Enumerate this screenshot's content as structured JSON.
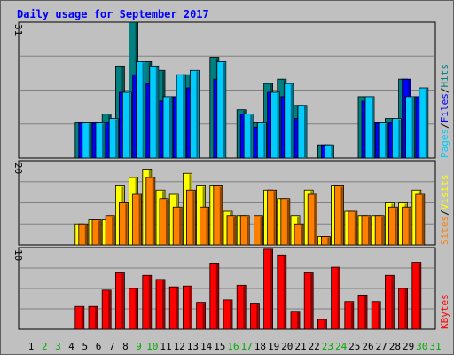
{
  "chart_data": [
    {
      "type": "bar",
      "title": "Daily usage for September 2017",
      "ymax_label": "31",
      "legend": [
        {
          "name": "Pages",
          "color": "#00ccff"
        },
        {
          "sep": "/"
        },
        {
          "name": "Files",
          "color": "#0000ff"
        },
        {
          "sep": "/"
        },
        {
          "name": "Hits",
          "color": "#008080"
        }
      ],
      "categories": [
        "1",
        "2",
        "3",
        "4",
        "5",
        "6",
        "7",
        "8",
        "9",
        "10",
        "11",
        "12",
        "13",
        "14",
        "15",
        "16",
        "17",
        "18",
        "19",
        "20",
        "21",
        "22",
        "23",
        "24",
        "25",
        "26",
        "27",
        "28",
        "29",
        "30",
        "31"
      ],
      "weekend_days": [
        "2",
        "3",
        "9",
        "10",
        "16",
        "17",
        "23",
        "24",
        "30",
        "31"
      ],
      "ylim": [
        0,
        31
      ],
      "series": [
        {
          "name": "Hits",
          "color": "#008080",
          "values": [
            0,
            0,
            0,
            0,
            8,
            8,
            10,
            21,
            31,
            22,
            20,
            14,
            19,
            0,
            23,
            0,
            11,
            8,
            17,
            18,
            12,
            0,
            3,
            0,
            0,
            14,
            8,
            9,
            18,
            14,
            0
          ]
        },
        {
          "name": "Files",
          "color": "#0000ff",
          "values": [
            0,
            0,
            0,
            0,
            8,
            8,
            8,
            15,
            19,
            17,
            13,
            14,
            16,
            0,
            18,
            0,
            10,
            7,
            15,
            14,
            9,
            0,
            3,
            0,
            0,
            13,
            8,
            8,
            18,
            14,
            0
          ]
        },
        {
          "name": "Pages",
          "color": "#00ccff",
          "values": [
            0,
            0,
            0,
            0,
            8,
            8,
            9,
            15,
            22,
            21,
            14,
            19,
            20,
            0,
            22,
            0,
            10,
            8,
            15,
            17,
            12,
            0,
            3,
            0,
            0,
            14,
            8,
            9,
            14,
            16,
            0
          ]
        }
      ]
    },
    {
      "type": "bar",
      "ymax_label": "20",
      "legend": [
        {
          "name": "Sites",
          "color": "#ff8000"
        },
        {
          "sep": "/"
        },
        {
          "name": "Visits",
          "color": "#ffff00"
        }
      ],
      "categories": [
        "1",
        "2",
        "3",
        "4",
        "5",
        "6",
        "7",
        "8",
        "9",
        "10",
        "11",
        "12",
        "13",
        "14",
        "15",
        "16",
        "17",
        "18",
        "19",
        "20",
        "21",
        "22",
        "23",
        "24",
        "25",
        "26",
        "27",
        "28",
        "29",
        "30",
        "31"
      ],
      "ylim": [
        0,
        20
      ],
      "series": [
        {
          "name": "Visits",
          "color": "#ffff00",
          "values": [
            0,
            0,
            0,
            0,
            5,
            6,
            6,
            14,
            16,
            18,
            13,
            12,
            17,
            14,
            14,
            8,
            7,
            0,
            13,
            11,
            7,
            13,
            2,
            14,
            8,
            7,
            7,
            10,
            10,
            13,
            0
          ]
        },
        {
          "name": "Sites",
          "color": "#ff8000",
          "values": [
            0,
            0,
            0,
            0,
            5,
            6,
            7,
            10,
            12,
            16,
            11,
            9,
            13,
            9,
            14,
            7,
            7,
            7,
            13,
            11,
            5,
            12,
            2,
            14,
            8,
            7,
            7,
            9,
            9,
            12,
            0
          ]
        }
      ]
    },
    {
      "type": "bar",
      "ymax_label": "10",
      "legend": [
        {
          "name": "KBytes",
          "color": "#ff0000"
        }
      ],
      "categories": [
        "1",
        "2",
        "3",
        "4",
        "5",
        "6",
        "7",
        "8",
        "9",
        "10",
        "11",
        "12",
        "13",
        "14",
        "15",
        "16",
        "17",
        "18",
        "19",
        "20",
        "21",
        "22",
        "23",
        "24",
        "25",
        "26",
        "27",
        "28",
        "29",
        "30",
        "31"
      ],
      "ylim": [
        0,
        10
      ],
      "series": [
        {
          "name": "KBytes",
          "color": "#ff0000",
          "values": [
            0,
            0,
            0,
            0,
            2.8,
            2.8,
            4.8,
            6.9,
            5,
            6.6,
            6.1,
            5.2,
            5.3,
            3.3,
            8.1,
            3.6,
            5.4,
            3.2,
            9.8,
            9.1,
            2.2,
            6.9,
            1.2,
            7.6,
            3.4,
            4.2,
            3.4,
            6.6,
            5,
            8.2,
            0
          ]
        }
      ]
    }
  ],
  "colors": {
    "background": "#c0c0c0",
    "title": "#0000ff",
    "weekday_label": "#000000",
    "weekend_label": "#00aa00",
    "gridline": "#808080"
  }
}
